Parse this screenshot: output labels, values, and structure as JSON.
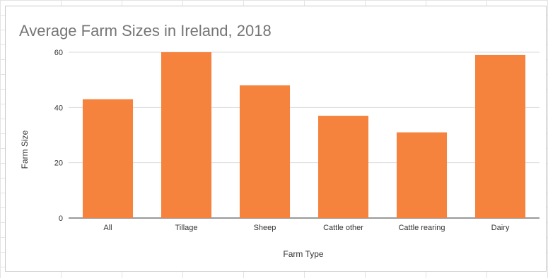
{
  "chart_data": {
    "type": "bar",
    "title": "Average Farm Sizes in Ireland, 2018",
    "xlabel": "Farm Type",
    "ylabel": "Farm Size",
    "categories": [
      "All",
      "Tillage",
      "Sheep",
      "Cattle other",
      "Cattle rearing",
      "Dairy"
    ],
    "values": [
      43,
      60,
      48,
      37,
      31,
      59
    ],
    "ylim": [
      0,
      60
    ],
    "yticks": [
      0,
      20,
      40,
      60
    ],
    "grid": true,
    "legend": "none",
    "bar_color": "#f5823d"
  }
}
